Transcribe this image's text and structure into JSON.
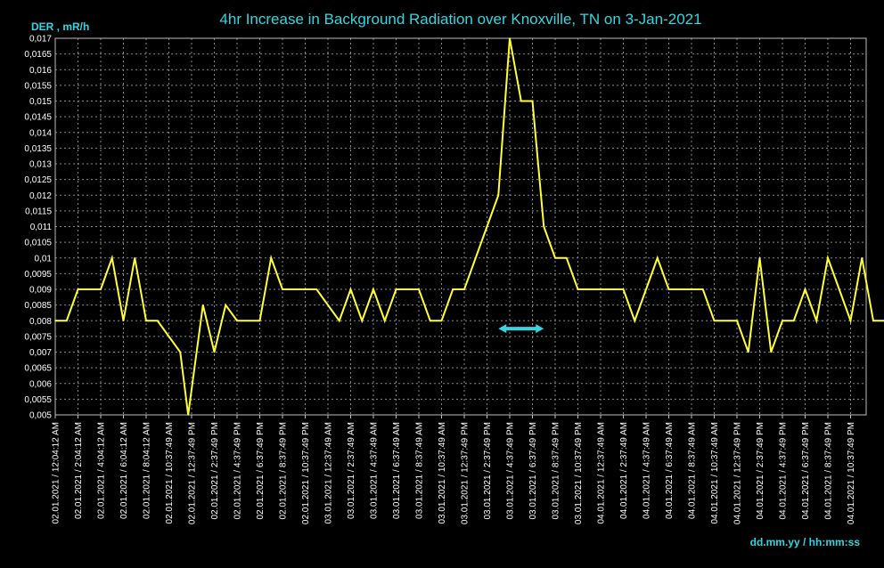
{
  "chart_data": {
    "type": "line",
    "title": "4hr Increase in Background Radiation over Knoxville, TN on 3-Jan-2021",
    "ylabel": "DER , mR/h",
    "xlabel": "dd.mm.yy / hh:mm:ss",
    "ylim": [
      0.005,
      0.017
    ],
    "yticks": [
      "0,005",
      "0,0055",
      "0,006",
      "0,0065",
      "0,007",
      "0,0075",
      "0,008",
      "0,0085",
      "0,009",
      "0,0095",
      "0,01",
      "0,0105",
      "0,011",
      "0,0115",
      "0,012",
      "0,0125",
      "0,013",
      "0,0135",
      "0,014",
      "0,0145",
      "0,015",
      "0,0155",
      "0,016",
      "0,0165",
      "0,017"
    ],
    "xticks": [
      "02.01.2021 / 12:04:12 AM",
      "02.01.2021 / 2:04:12 AM",
      "02.01.2021 / 4:04:12 AM",
      "02.01.2021 / 6:04:12 AM",
      "02.01.2021 / 8:04:12 AM",
      "02.01.2021 / 10:37:49 AM",
      "02.01.2021 / 12:37:49 PM",
      "02.01.2021 / 2:37:49 PM",
      "02.01.2021 / 4:37:49 PM",
      "02.01.2021 / 6:37:49 PM",
      "02.01.2021 / 8:37:49 PM",
      "02.01.2021 / 10:37:49 PM",
      "03.01.2021 / 12:37:49 AM",
      "03.01.2021 / 2:37:49 AM",
      "03.01.2021 / 4:37:49 AM",
      "03.01.2021 / 6:37:49 AM",
      "03.01.2021 / 8:37:49 AM",
      "03.01.2021 / 10:37:49 AM",
      "03.01.2021 / 12:37:49 PM",
      "03.01.2021 / 2:37:49 PM",
      "03.01.2021 / 4:37:49 PM",
      "03.01.2021 / 6:37:49 PM",
      "03.01.2021 / 8:37:49 PM",
      "03.01.2021 / 10:37:49 PM",
      "04.01.2021 / 12:37:49 AM",
      "04.01.2021 / 2:37:49 AM",
      "04.01.2021 / 4:37:49 AM",
      "04.01.2021 / 6:37:49 AM",
      "04.01.2021 / 8:37:49 AM",
      "04.01.2021 / 10:37:49 AM",
      "04.01.2021 / 12:37:49 PM",
      "04.01.2021 / 2:37:49 PM",
      "04.01.2021 / 4:37:49 PM",
      "04.01.2021 / 6:37:49 PM",
      "04.01.2021 / 8:37:49 PM",
      "04.01.2021 / 10:37:49 PM"
    ],
    "series": [
      {
        "values": [
          [
            0.0,
            0.008
          ],
          [
            0.5,
            0.008
          ],
          [
            1.0,
            0.009
          ],
          [
            2.0,
            0.009
          ],
          [
            2.5,
            0.01
          ],
          [
            3.0,
            0.008
          ],
          [
            3.5,
            0.01
          ],
          [
            4.0,
            0.008
          ],
          [
            4.5,
            0.008
          ],
          [
            5.0,
            0.0075
          ],
          [
            5.5,
            0.007
          ],
          [
            5.85,
            0.005
          ],
          [
            6.5,
            0.0085
          ],
          [
            7.0,
            0.007
          ],
          [
            7.5,
            0.0085
          ],
          [
            8.0,
            0.008
          ],
          [
            9.0,
            0.008
          ],
          [
            9.5,
            0.01
          ],
          [
            10.0,
            0.009
          ],
          [
            11.5,
            0.009
          ],
          [
            12.5,
            0.008
          ],
          [
            13.0,
            0.009
          ],
          [
            13.5,
            0.008
          ],
          [
            14.0,
            0.009
          ],
          [
            14.5,
            0.008
          ],
          [
            15.0,
            0.009
          ],
          [
            16.0,
            0.009
          ],
          [
            16.5,
            0.008
          ],
          [
            17.0,
            0.008
          ],
          [
            17.5,
            0.009
          ],
          [
            18.0,
            0.009
          ],
          [
            19.0,
            0.011
          ],
          [
            19.5,
            0.012
          ],
          [
            20.0,
            0.017
          ],
          [
            20.5,
            0.015
          ],
          [
            21.0,
            0.015
          ],
          [
            21.5,
            0.011
          ],
          [
            22.0,
            0.01
          ],
          [
            22.5,
            0.01
          ],
          [
            23.0,
            0.009
          ],
          [
            25.0,
            0.009
          ],
          [
            25.5,
            0.008
          ],
          [
            26.5,
            0.01
          ],
          [
            27.0,
            0.009
          ],
          [
            28.5,
            0.009
          ],
          [
            29.0,
            0.008
          ],
          [
            30.0,
            0.008
          ],
          [
            30.5,
            0.007
          ],
          [
            31.0,
            0.01
          ],
          [
            31.5,
            0.007
          ],
          [
            32.0,
            0.008
          ],
          [
            32.5,
            0.008
          ],
          [
            33.0,
            0.009
          ],
          [
            33.5,
            0.008
          ],
          [
            34.0,
            0.01
          ],
          [
            35.0,
            0.008
          ],
          [
            35.5,
            0.01
          ],
          [
            36.0,
            0.008
          ],
          [
            36.5,
            0.008
          ]
        ]
      }
    ],
    "annotation": {
      "type": "double-arrow",
      "x_start": 19.5,
      "x_end": 21.5,
      "y": 0.00775,
      "color": "#33d6e0"
    },
    "colors": {
      "background": "#000000",
      "line": "#ffff33",
      "grid": "#8a8a8a",
      "axis_text": "#ffffff",
      "title": "#33d6e0"
    },
    "grid": true,
    "legend": "none"
  }
}
